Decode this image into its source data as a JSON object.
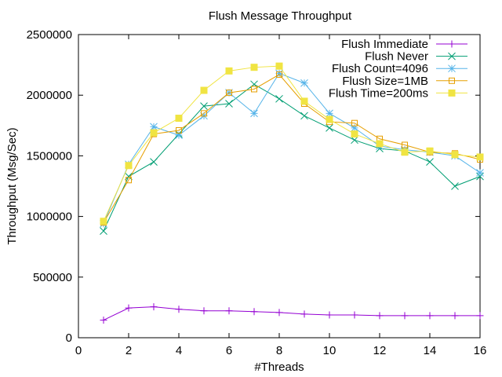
{
  "chart_data": {
    "type": "line",
    "title": "Flush Message Throughput",
    "xlabel": "#Threads",
    "ylabel": "Throughput (Msg/Sec)",
    "xlim": [
      0,
      16
    ],
    "ylim": [
      0,
      2500000
    ],
    "xticks": [
      "0",
      "2",
      "4",
      "6",
      "8",
      "10",
      "12",
      "14",
      "16"
    ],
    "yticks": [
      "0",
      "500000",
      "1000000",
      "1500000",
      "2000000",
      "2500000"
    ],
    "grid": false,
    "legend_position": "top-right",
    "x": [
      1,
      2,
      3,
      4,
      5,
      6,
      7,
      8,
      9,
      10,
      11,
      12,
      13,
      14,
      15,
      16
    ],
    "series": [
      {
        "name": "Flush Immediate",
        "color": "#9400d3",
        "marker": "plus",
        "values": [
          145000,
          245000,
          255000,
          235000,
          222000,
          222000,
          215000,
          208000,
          195000,
          188000,
          188000,
          182000,
          182000,
          182000,
          182000,
          182000
        ]
      },
      {
        "name": "Flush Never",
        "color": "#009e73",
        "marker": "cross",
        "values": [
          880000,
          1330000,
          1450000,
          1680000,
          1910000,
          1930000,
          2090000,
          1970000,
          1830000,
          1730000,
          1630000,
          1560000,
          1540000,
          1450000,
          1250000,
          1330000
        ]
      },
      {
        "name": "Flush Count=4096",
        "color": "#56b4e9",
        "marker": "star",
        "values": [
          940000,
          1430000,
          1740000,
          1670000,
          1830000,
          2020000,
          1850000,
          2180000,
          2100000,
          1850000,
          1730000,
          1580000,
          1550000,
          1530000,
          1500000,
          1360000
        ]
      },
      {
        "name": "Flush Size=1MB",
        "color": "#e69f00",
        "marker": "square",
        "values": [
          950000,
          1300000,
          1680000,
          1710000,
          1850000,
          2020000,
          2050000,
          2170000,
          1930000,
          1780000,
          1770000,
          1640000,
          1590000,
          1530000,
          1520000,
          1470000
        ]
      },
      {
        "name": "Flush Time=200ms",
        "color": "#f0e442",
        "marker": "filled-square",
        "values": [
          960000,
          1420000,
          1690000,
          1810000,
          2040000,
          2200000,
          2230000,
          2240000,
          1950000,
          1800000,
          1680000,
          1600000,
          1530000,
          1540000,
          1510000,
          1490000
        ]
      }
    ]
  }
}
